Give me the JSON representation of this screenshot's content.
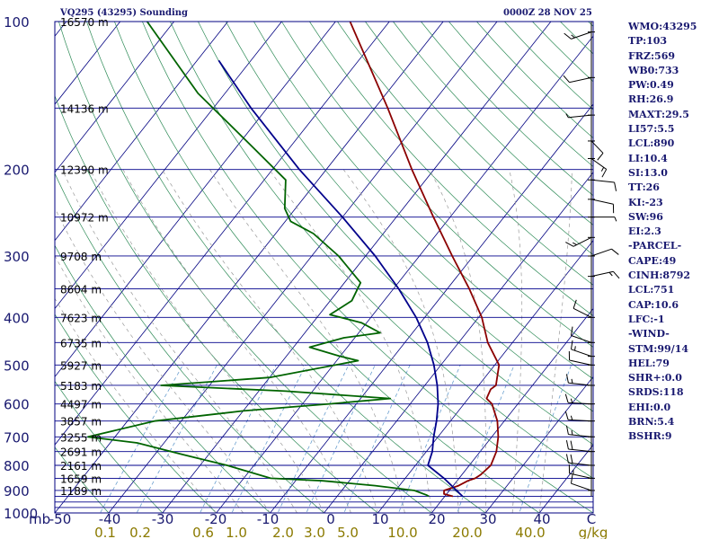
{
  "header": {
    "station": "VQ295 (43295) Sounding",
    "datetime": "0000Z 28 NOV 25"
  },
  "indices": [
    "WMO:43295",
    "TP:103",
    "FRZ:569",
    "WB0:733",
    "PW:0.49",
    "RH:26.9",
    "MAXT:29.5",
    "LI57:5.5",
    "LCL:890",
    "LI:10.4",
    "SI:13.0",
    "TT:26",
    "KI:-23",
    "SW:96",
    "EI:2.3",
    "-PARCEL-",
    "CAPE:49",
    "CINH:8792",
    "LCL:751",
    "CAP:10.6",
    "LFC:-1",
    "-WIND-",
    "STM:99/14",
    "HEL:79",
    "SHR+:0.0",
    "SRDS:118",
    "EHI:0.0",
    "BRN:5.4",
    "BSHR:9"
  ],
  "chart_data": {
    "type": "line",
    "subtype": "skew-t log-p sounding",
    "y_unit": "mb",
    "x_unit": "C",
    "mixing_ratio_unit": "g/kg",
    "ylim": [
      1000,
      100
    ],
    "xlim": [
      -50,
      50
    ],
    "pressure_ticks": [
      100,
      200,
      300,
      400,
      500,
      600,
      700,
      800,
      900,
      1000
    ],
    "temperature_ticks": [
      -50,
      -40,
      -30,
      -20,
      -10,
      0,
      10,
      20,
      30,
      40
    ],
    "mixing_ratio_ticks": [
      "0.1",
      "0.2",
      "0.6",
      "1.0",
      "2.0",
      "3.0",
      "5.0",
      "10.0",
      "20.0",
      "40.0"
    ],
    "height_labels": [
      {
        "p": 100,
        "text": "16570 m"
      },
      {
        "p": 150,
        "text": "14136 m"
      },
      {
        "p": 200,
        "text": "12390 m"
      },
      {
        "p": 250,
        "text": "10972 m"
      },
      {
        "p": 300,
        "text": "9708 m"
      },
      {
        "p": 350,
        "text": "8604 m"
      },
      {
        "p": 400,
        "text": "7623 m"
      },
      {
        "p": 450,
        "text": "6735 m"
      },
      {
        "p": 500,
        "text": "5927 m"
      },
      {
        "p": 550,
        "text": "5183 m"
      },
      {
        "p": 600,
        "text": "4497 m"
      },
      {
        "p": 650,
        "text": "3857 m"
      },
      {
        "p": 700,
        "text": "3255 m"
      },
      {
        "p": 750,
        "text": "2691 m"
      },
      {
        "p": 800,
        "text": "2161 m"
      },
      {
        "p": 850,
        "text": "1659 m"
      },
      {
        "p": 900,
        "text": "1189 m"
      }
    ],
    "series": [
      {
        "role": "temperature",
        "color": "#8b0000",
        "points": [
          [
            925,
            21.5
          ],
          [
            915,
            19.5
          ],
          [
            900,
            19.0
          ],
          [
            880,
            21.0
          ],
          [
            860,
            22.0
          ],
          [
            850,
            23.0
          ],
          [
            835,
            23.5
          ],
          [
            800,
            24.0
          ],
          [
            750,
            23.0
          ],
          [
            700,
            21.2
          ],
          [
            650,
            18.7
          ],
          [
            600,
            15.2
          ],
          [
            585,
            13.4
          ],
          [
            560,
            12.8
          ],
          [
            550,
            13.2
          ],
          [
            500,
            10.8
          ],
          [
            450,
            5.4
          ],
          [
            400,
            0.6
          ],
          [
            350,
            -5.9
          ],
          [
            300,
            -13.9
          ],
          [
            250,
            -23.1
          ],
          [
            200,
            -34.1
          ],
          [
            150,
            -47.6
          ],
          [
            100,
            -67.3
          ]
        ]
      },
      {
        "role": "dewpoint",
        "color": "#006400",
        "points": [
          [
            925,
            17.0
          ],
          [
            920,
            16.5
          ],
          [
            900,
            13.5
          ],
          [
            880,
            5.5
          ],
          [
            860,
            -5.0
          ],
          [
            850,
            -15.0
          ],
          [
            800,
            -25.0
          ],
          [
            760,
            -35.0
          ],
          [
            720,
            -45.0
          ],
          [
            700,
            -55.0
          ],
          [
            650,
            -45.0
          ],
          [
            620,
            -30.0
          ],
          [
            600,
            -15.0
          ],
          [
            585,
            -4.5
          ],
          [
            565,
            -25.0
          ],
          [
            550,
            -49.0
          ],
          [
            530,
            -30.0
          ],
          [
            490,
            -16.0
          ],
          [
            480,
            -20.0
          ],
          [
            460,
            -27.0
          ],
          [
            440,
            -22.0
          ],
          [
            430,
            -16.0
          ],
          [
            410,
            -21.0
          ],
          [
            395,
            -28.0
          ],
          [
            370,
            -26.0
          ],
          [
            340,
            -27.0
          ],
          [
            300,
            -35.0
          ],
          [
            270,
            -43.0
          ],
          [
            255,
            -49.0
          ],
          [
            240,
            -52.0
          ],
          [
            210,
            -56.0
          ],
          [
            180,
            -67.0
          ],
          [
            140,
            -85.0
          ],
          [
            100,
            -105.0
          ]
        ]
      },
      {
        "role": "parcel",
        "color": "#00008b",
        "points": [
          [
            925,
            23.3
          ],
          [
            850,
            17.2
          ],
          [
            800,
            12.3
          ],
          [
            750,
            11.1
          ],
          [
            700,
            9.2
          ],
          [
            650,
            7.4
          ],
          [
            600,
            5.2
          ],
          [
            550,
            2.3
          ],
          [
            500,
            -1.3
          ],
          [
            450,
            -5.8
          ],
          [
            400,
            -11.6
          ],
          [
            350,
            -19.0
          ],
          [
            300,
            -28.2
          ],
          [
            250,
            -40.0
          ],
          [
            200,
            -55.0
          ],
          [
            150,
            -73.0
          ],
          [
            120,
            -86.0
          ]
        ]
      }
    ],
    "wind_barbs": [
      {
        "p": 105,
        "speed": 15,
        "dir": 240
      },
      {
        "p": 130,
        "speed": 10,
        "dir": 250
      },
      {
        "p": 155,
        "speed": 5,
        "dir": 260
      },
      {
        "p": 175,
        "speed": 10,
        "dir": 150
      },
      {
        "p": 190,
        "speed": 15,
        "dir": 140
      },
      {
        "p": 210,
        "speed": 10,
        "dir": 100
      },
      {
        "p": 230,
        "speed": 10,
        "dir": 110
      },
      {
        "p": 250,
        "speed": 5,
        "dir": 90
      },
      {
        "p": 275,
        "speed": 15,
        "dir": 230
      },
      {
        "p": 300,
        "speed": 10,
        "dir": 60
      },
      {
        "p": 330,
        "speed": 15,
        "dir": 70
      },
      {
        "p": 400,
        "speed": 10,
        "dir": 310
      },
      {
        "p": 450,
        "speed": 10,
        "dir": 300
      },
      {
        "p": 480,
        "speed": 15,
        "dir": 300
      },
      {
        "p": 500,
        "speed": 10,
        "dir": 290
      },
      {
        "p": 550,
        "speed": 15,
        "dir": 280
      },
      {
        "p": 600,
        "speed": 15,
        "dir": 275
      },
      {
        "p": 650,
        "speed": 15,
        "dir": 275
      },
      {
        "p": 700,
        "speed": 15,
        "dir": 280
      },
      {
        "p": 750,
        "speed": 20,
        "dir": 280
      },
      {
        "p": 800,
        "speed": 20,
        "dir": 280
      },
      {
        "p": 850,
        "speed": 15,
        "dir": 290
      },
      {
        "p": 900,
        "speed": 10,
        "dir": 300
      }
    ],
    "colors": {
      "isobar": "#00008b",
      "isotherm": "#000080",
      "dry_adiabat": "#2e8b57",
      "moist_adiabat": "#999999",
      "mixing_ratio": "#6a9fcf",
      "tick_label": "#191970",
      "mixing_label": "#8b7a00"
    }
  }
}
